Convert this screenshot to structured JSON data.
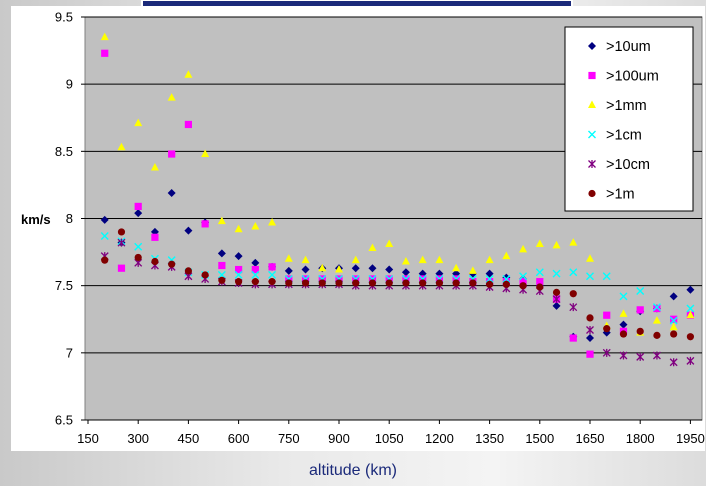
{
  "header_band_color": "#1b2a7a",
  "chart_data": {
    "type": "scatter",
    "title": "",
    "xlabel": "altitude (km)",
    "ylabel": "km/s",
    "xlim": [
      150,
      2000
    ],
    "ylim": [
      6.5,
      9.5
    ],
    "x_ticks": [
      "150",
      "300",
      "450",
      "600",
      "750",
      "900",
      "1050",
      "1200",
      "1350",
      "1500",
      "1650",
      "1800",
      "1950"
    ],
    "y_ticks": [
      "6.5",
      "7",
      "7.5",
      "8",
      "8.5",
      "9",
      "9.5"
    ],
    "grid": "horizontal",
    "plot_background": "#c0c0c0",
    "legend_position": "top-right",
    "x": [
      200,
      250,
      300,
      350,
      400,
      450,
      500,
      550,
      600,
      650,
      700,
      750,
      800,
      850,
      900,
      950,
      1000,
      1050,
      1100,
      1150,
      1200,
      1250,
      1300,
      1350,
      1400,
      1450,
      1500,
      1550,
      1600,
      1650,
      1700,
      1750,
      1800,
      1850,
      1900,
      1950
    ],
    "series": [
      {
        "name": ">10um",
        "color": "#000080",
        "marker": "diamond",
        "values": [
          7.99,
          7.82,
          8.04,
          7.9,
          8.19,
          7.91,
          7.97,
          7.74,
          7.72,
          7.67,
          7.64,
          7.61,
          7.62,
          7.63,
          7.63,
          7.63,
          7.63,
          7.62,
          7.6,
          7.59,
          7.59,
          7.59,
          7.59,
          7.59,
          7.56,
          7.55,
          7.5,
          7.35,
          7.12,
          7.11,
          7.15,
          7.21,
          7.31,
          7.33,
          7.42,
          7.47
        ]
      },
      {
        "name": ">100um",
        "color": "#ff00ff",
        "marker": "square",
        "values": [
          9.23,
          7.63,
          8.09,
          7.86,
          8.48,
          8.7,
          7.96,
          7.65,
          7.62,
          7.62,
          7.64,
          7.55,
          7.55,
          7.55,
          7.55,
          7.55,
          7.55,
          7.55,
          7.55,
          7.55,
          7.55,
          7.55,
          7.53,
          7.53,
          7.53,
          7.53,
          7.53,
          7.4,
          7.11,
          6.99,
          7.28,
          7.16,
          7.32,
          7.33,
          7.25,
          7.28
        ]
      },
      {
        "name": ">1mm",
        "color": "#ffff00",
        "marker": "triangle",
        "values": [
          9.35,
          8.53,
          8.71,
          8.38,
          8.9,
          9.07,
          8.48,
          7.98,
          7.92,
          7.94,
          7.97,
          7.7,
          7.69,
          7.63,
          7.62,
          7.69,
          7.78,
          7.81,
          7.68,
          7.69,
          7.69,
          7.63,
          7.61,
          7.69,
          7.72,
          7.77,
          7.81,
          7.8,
          7.82,
          7.7,
          7.2,
          7.29,
          7.15,
          7.24,
          7.19,
          7.28
        ]
      },
      {
        "name": ">1cm",
        "color": "#00ffff",
        "marker": "x",
        "values": [
          7.87,
          7.83,
          7.79,
          7.7,
          7.69,
          7.6,
          7.58,
          7.58,
          7.58,
          7.58,
          7.58,
          7.55,
          7.55,
          7.55,
          7.55,
          7.55,
          7.55,
          7.55,
          7.55,
          7.55,
          7.55,
          7.55,
          7.55,
          7.55,
          7.55,
          7.57,
          7.6,
          7.59,
          7.6,
          7.57,
          7.57,
          7.42,
          7.46,
          7.34,
          7.24,
          7.33
        ]
      },
      {
        "name": ">10cm",
        "color": "#800080",
        "marker": "star",
        "values": [
          7.72,
          7.82,
          7.67,
          7.65,
          7.64,
          7.57,
          7.55,
          7.53,
          7.52,
          7.51,
          7.51,
          7.51,
          7.51,
          7.51,
          7.51,
          7.5,
          7.5,
          7.5,
          7.5,
          7.5,
          7.5,
          7.5,
          7.5,
          7.49,
          7.48,
          7.47,
          7.46,
          7.4,
          7.34,
          7.17,
          7.0,
          6.98,
          6.97,
          6.98,
          6.93,
          6.94
        ]
      },
      {
        "name": ">1m",
        "color": "#800000",
        "marker": "circle",
        "values": [
          7.69,
          7.9,
          7.71,
          7.68,
          7.66,
          7.61,
          7.58,
          7.54,
          7.53,
          7.53,
          7.53,
          7.52,
          7.52,
          7.52,
          7.52,
          7.52,
          7.52,
          7.52,
          7.52,
          7.52,
          7.52,
          7.52,
          7.52,
          7.51,
          7.51,
          7.5,
          7.49,
          7.45,
          7.44,
          7.26,
          7.18,
          7.14,
          7.16,
          7.13,
          7.14,
          7.12
        ]
      }
    ]
  }
}
